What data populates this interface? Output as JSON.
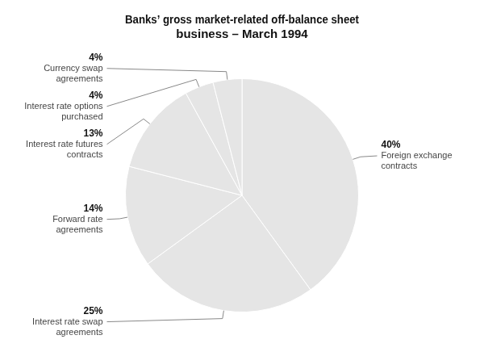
{
  "chart_data": {
    "type": "pie",
    "title": [
      "Banks’ gross market-related off-balance sheet",
      "business – March 1994"
    ],
    "categories": [
      "Foreign exchange\ncontracts",
      "Interest rate swap\nagreements",
      "Forward rate\nagreements",
      "Interest rate futures\ncontracts",
      "Interest rate options\npurchased",
      "Currency swap\nagreements"
    ],
    "values": [
      40,
      25,
      14,
      13,
      4,
      4
    ],
    "value_labels": [
      "40%",
      "25%",
      "14%",
      "13%",
      "4%",
      "4%"
    ],
    "data_labels": true
  }
}
